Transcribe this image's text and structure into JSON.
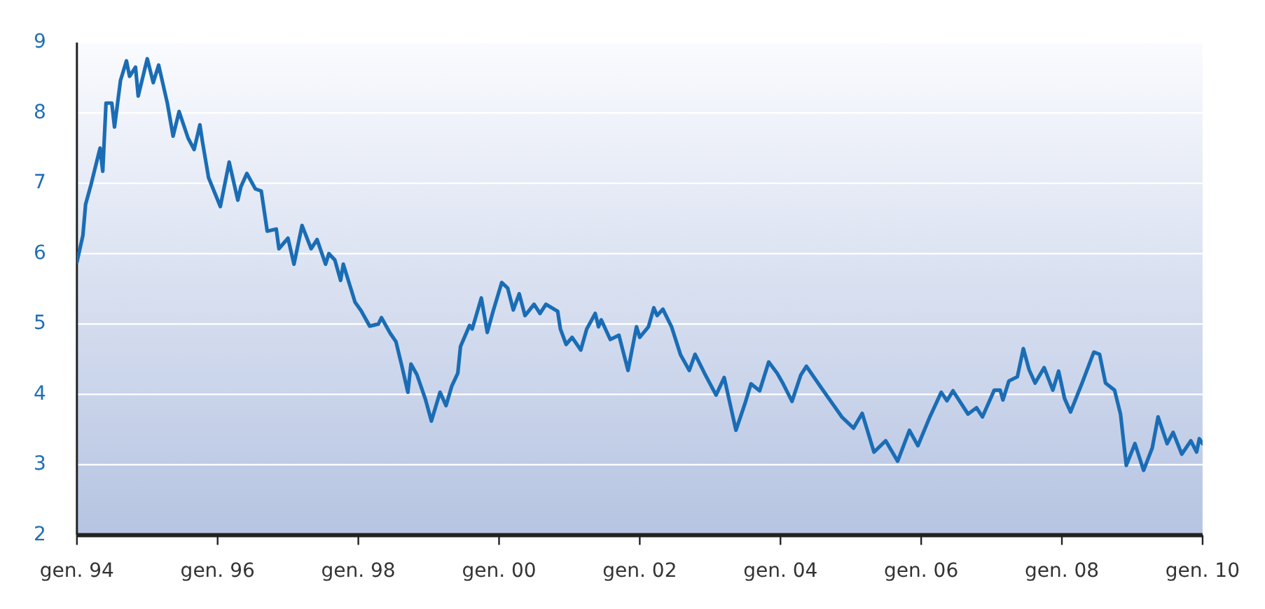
{
  "chart_data": {
    "type": "line",
    "x": [
      "1994-01-01",
      "1994-02-01",
      "1994-02-15",
      "1994-03-15",
      "1994-05-01",
      "1994-05-15",
      "1994-06-01",
      "1994-07-01",
      "1994-07-15",
      "1994-08-15",
      "1994-09-15",
      "1994-10-01",
      "1994-11-01",
      "1994-11-15",
      "1995-01-01",
      "1995-02-01",
      "1995-03-01",
      "1995-04-15",
      "1995-05-15",
      "1995-06-15",
      "1995-08-01",
      "1995-09-01",
      "1995-10-01",
      "1995-10-15",
      "1995-11-15",
      "1996-01-15",
      "1996-03-01",
      "1996-04-15",
      "1996-05-01",
      "1996-06-01",
      "1996-07-15",
      "1996-08-15",
      "1996-09-15",
      "1996-11-01",
      "1996-11-15",
      "1997-01-01",
      "1997-02-01",
      "1997-03-15",
      "1997-05-01",
      "1997-06-01",
      "1997-07-15",
      "1997-08-01",
      "1997-09-01",
      "1997-10-01",
      "1997-10-15",
      "1997-12-15",
      "1998-01-15",
      "1998-03-01",
      "1998-04-15",
      "1998-05-01",
      "1998-06-15",
      "1998-07-15",
      "1998-08-15",
      "1998-09-15",
      "1998-10-01",
      "1998-11-01",
      "1998-12-15",
      "1999-01-15",
      "1999-03-01",
      "1999-04-01",
      "1999-05-01",
      "1999-06-01",
      "1999-06-15",
      "1999-08-01",
      "1999-08-15",
      "1999-10-01",
      "1999-11-01",
      "1999-12-01",
      "2000-01-15",
      "2000-02-15",
      "2000-03-15",
      "2000-04-15",
      "2000-05-15",
      "2000-07-01",
      "2000-08-01",
      "2000-09-01",
      "2000-11-01",
      "2000-11-15",
      "2000-12-15",
      "2001-01-15",
      "2001-03-01",
      "2001-04-01",
      "2001-05-15",
      "2001-06-01",
      "2001-06-15",
      "2001-08-01",
      "2001-09-15",
      "2001-11-01",
      "2001-12-15",
      "2002-01-01",
      "2002-02-15",
      "2002-03-15",
      "2002-04-01",
      "2002-05-01",
      "2002-06-15",
      "2002-08-01",
      "2002-09-15",
      "2002-10-15",
      "2002-12-01",
      "2003-02-01",
      "2003-03-15",
      "2003-05-15",
      "2003-07-01",
      "2003-08-01",
      "2003-09-15",
      "2003-11-01",
      "2003-12-15",
      "2004-01-15",
      "2004-03-01",
      "2004-04-15",
      "2004-05-15",
      "2004-08-01",
      "2004-11-15",
      "2005-01-15",
      "2005-03-01",
      "2005-05-01",
      "2005-07-01",
      "2005-09-01",
      "2005-11-01",
      "2005-12-15",
      "2006-02-15",
      "2006-04-15",
      "2006-05-15",
      "2006-06-15",
      "2006-09-01",
      "2006-10-15",
      "2006-11-15",
      "2007-01-15",
      "2007-02-15",
      "2007-03-01",
      "2007-04-01",
      "2007-05-15",
      "2007-06-15",
      "2007-07-15",
      "2007-08-15",
      "2007-10-01",
      "2007-11-15",
      "2007-12-15",
      "2008-01-15",
      "2008-02-15",
      "2008-04-15",
      "2008-06-15",
      "2008-07-15",
      "2008-08-15",
      "2008-10-01",
      "2008-11-01",
      "2008-12-01",
      "2009-01-15",
      "2009-03-01",
      "2009-04-15",
      "2009-05-15",
      "2009-07-01",
      "2009-08-01",
      "2009-09-15",
      "2009-11-01",
      "2009-12-01",
      "2009-12-15",
      "2010-01-01"
    ],
    "series": [
      {
        "color": "#1a6db5",
        "values": [
          5.88,
          6.26,
          6.7,
          6.98,
          7.5,
          7.17,
          8.14,
          8.14,
          7.8,
          8.46,
          8.74,
          8.52,
          8.65,
          8.24,
          8.77,
          8.43,
          8.68,
          8.14,
          7.67,
          8.02,
          7.64,
          7.48,
          7.83,
          7.58,
          7.08,
          6.67,
          7.3,
          6.76,
          6.95,
          7.14,
          6.92,
          6.89,
          6.32,
          6.35,
          6.07,
          6.22,
          5.85,
          6.4,
          6.07,
          6.2,
          5.85,
          6.0,
          5.91,
          5.62,
          5.85,
          5.31,
          5.19,
          4.97,
          5.0,
          5.09,
          4.87,
          4.75,
          4.4,
          4.03,
          4.43,
          4.28,
          3.93,
          3.62,
          4.03,
          3.84,
          4.12,
          4.3,
          4.68,
          4.98,
          4.93,
          5.37,
          4.88,
          5.18,
          5.59,
          5.51,
          5.2,
          5.43,
          5.12,
          5.28,
          5.15,
          5.28,
          5.18,
          4.93,
          4.71,
          4.81,
          4.63,
          4.93,
          5.15,
          4.96,
          5.06,
          4.78,
          4.84,
          4.34,
          4.96,
          4.81,
          4.96,
          5.23,
          5.12,
          5.21,
          4.96,
          4.56,
          4.34,
          4.57,
          4.31,
          3.99,
          4.24,
          3.49,
          3.87,
          4.15,
          4.05,
          4.46,
          4.3,
          4.15,
          3.9,
          4.27,
          4.4,
          4.09,
          3.68,
          3.52,
          3.73,
          3.18,
          3.34,
          3.05,
          3.49,
          3.27,
          3.68,
          4.03,
          3.91,
          4.05,
          3.72,
          3.81,
          3.68,
          4.06,
          4.06,
          3.92,
          4.19,
          4.25,
          4.65,
          4.35,
          4.16,
          4.38,
          4.06,
          4.33,
          3.94,
          3.75,
          4.16,
          4.6,
          4.57,
          4.16,
          4.06,
          3.72,
          2.99,
          3.3,
          2.92,
          3.24,
          3.68,
          3.3,
          3.46,
          3.15,
          3.34,
          3.18,
          3.37,
          3.3
        ]
      }
    ],
    "xlim": [
      "1994-01-01",
      "2010-01-01"
    ],
    "xticks": [
      {
        "value": "1994-01-01",
        "label": "gen. 94"
      },
      {
        "value": "1996-01-01",
        "label": "gen. 96"
      },
      {
        "value": "1998-01-01",
        "label": "gen. 98"
      },
      {
        "value": "2000-01-01",
        "label": "gen. 00"
      },
      {
        "value": "2002-01-01",
        "label": "gen. 02"
      },
      {
        "value": "2004-01-01",
        "label": "gen. 04"
      },
      {
        "value": "2006-01-01",
        "label": "gen. 06"
      },
      {
        "value": "2008-01-01",
        "label": "gen. 08"
      },
      {
        "value": "2010-01-01",
        "label": "gen. 10"
      }
    ],
    "ylim": [
      2,
      9
    ],
    "yticks": [
      2,
      3,
      4,
      5,
      6,
      7,
      8,
      9
    ],
    "grid": "y",
    "marker": "none",
    "line_style": "solid"
  }
}
